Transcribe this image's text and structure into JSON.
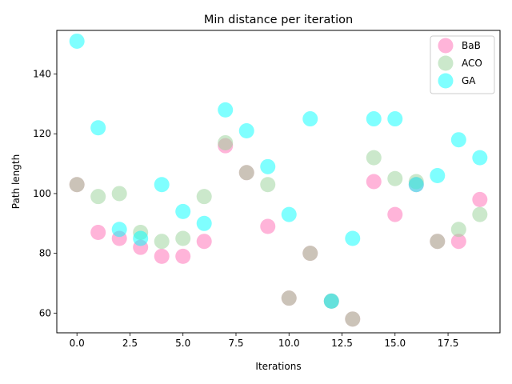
{
  "chart_data": {
    "type": "scatter",
    "title": "Min distance per iteration",
    "xlabel": "Iterations",
    "ylabel": "Path length",
    "xlim": [
      -0.95,
      19.95
    ],
    "ylim": [
      53.4,
      154.6
    ],
    "xticks": [
      0.0,
      2.5,
      5.0,
      7.5,
      10.0,
      12.5,
      15.0,
      17.5
    ],
    "xtick_labels": [
      "0.0",
      "2.5",
      "5.0",
      "7.5",
      "10.0",
      "12.5",
      "15.0",
      "17.5"
    ],
    "yticks": [
      60,
      80,
      100,
      120,
      140
    ],
    "ytick_labels": [
      "60",
      "80",
      "100",
      "120",
      "140"
    ],
    "grid": false,
    "legend_position": "top-right",
    "series": [
      {
        "name": "BaB",
        "color": "#ff69b4",
        "x": [
          0,
          1,
          2,
          3,
          4,
          5,
          6,
          7,
          8,
          9,
          10,
          11,
          12,
          13,
          14,
          15,
          16,
          17,
          18,
          19
        ],
        "y": [
          103,
          87,
          85,
          82,
          79,
          79,
          84,
          116,
          107,
          89,
          65,
          80,
          64,
          58,
          104,
          93,
          103,
          84,
          84,
          98
        ]
      },
      {
        "name": "ACO",
        "color": "#98d198",
        "x": [
          0,
          1,
          2,
          3,
          4,
          5,
          6,
          7,
          8,
          9,
          10,
          11,
          12,
          13,
          14,
          15,
          16,
          17,
          18,
          19
        ],
        "y": [
          103,
          99,
          100,
          87,
          84,
          85,
          99,
          117,
          107,
          103,
          65,
          80,
          64,
          58,
          112,
          105,
          104,
          84,
          88,
          93
        ]
      },
      {
        "name": "GA",
        "color": "#00ffff",
        "x": [
          0,
          1,
          2,
          3,
          4,
          5,
          6,
          7,
          8,
          9,
          10,
          11,
          12,
          13,
          14,
          15,
          16,
          17,
          18,
          19
        ],
        "y": [
          151,
          122,
          88,
          85,
          103,
          94,
          90,
          128,
          121,
          109,
          93,
          125,
          64,
          85,
          125,
          125,
          103,
          106,
          118,
          112
        ]
      }
    ]
  }
}
